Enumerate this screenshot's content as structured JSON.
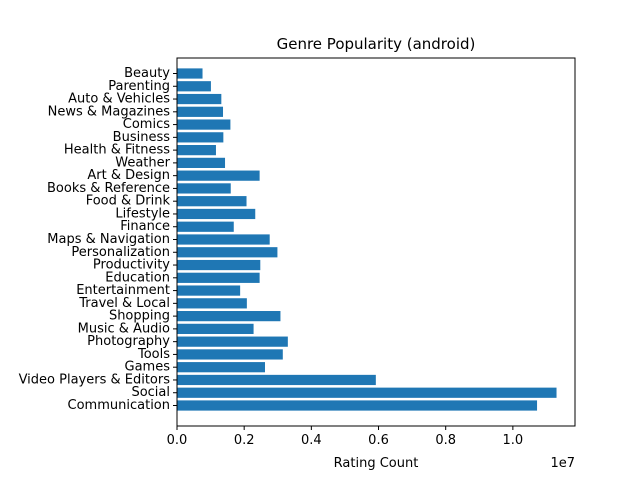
{
  "chart_data": {
    "type": "bar",
    "orientation": "horizontal",
    "title": "Genre Popularity (android)",
    "xlabel": "Rating Count",
    "ylabel": "",
    "offset_text": "1e7",
    "xlim": [
      0,
      11850000
    ],
    "xticks": [
      0,
      2000000,
      4000000,
      6000000,
      8000000,
      10000000
    ],
    "xtick_labels": [
      "0.0",
      "0.2",
      "0.4",
      "0.6",
      "0.8",
      "1.0"
    ],
    "bar_color": "#1f77b4",
    "grid": false,
    "categories": [
      "Communication",
      "Social",
      "Video Players & Editors",
      "Games",
      "Tools",
      "Photography",
      "Music & Audio",
      "Shopping",
      "Travel & Local",
      "Entertainment",
      "Education",
      "Productivity",
      "Personalization",
      "Maps & Navigation",
      "Finance",
      "Lifestyle",
      "Food & Drink",
      "Books & Reference",
      "Art & Design",
      "Weather",
      "Health & Fitness",
      "Business",
      "Comics",
      "News & Magazines",
      "Auto & Vehicles",
      "Parenting",
      "Beauty"
    ],
    "values": [
      10720000,
      11300000,
      5920000,
      2620000,
      3150000,
      3300000,
      2280000,
      3080000,
      2080000,
      1880000,
      2460000,
      2480000,
      2990000,
      2760000,
      1690000,
      2330000,
      2070000,
      1600000,
      2460000,
      1430000,
      1160000,
      1380000,
      1590000,
      1370000,
      1320000,
      1010000,
      760000
    ]
  }
}
